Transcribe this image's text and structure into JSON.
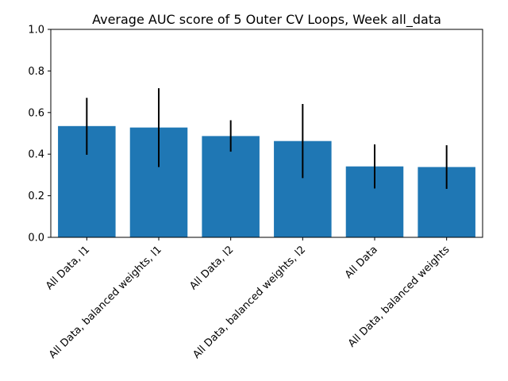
{
  "chart_data": {
    "type": "bar",
    "title": "Average AUC score of 5 Outer CV Loops, Week all_data",
    "xlabel": "",
    "ylabel": "",
    "categories": [
      "All Data, l1",
      "All Data, balanced weights, l1",
      "All Data, l2",
      "All Data, balanced weights, l2",
      "All Data",
      "All Data, balanced weights"
    ],
    "values": [
      0.535,
      0.528,
      0.487,
      0.463,
      0.341,
      0.338
    ],
    "error_low": [
      0.397,
      0.338,
      0.412,
      0.285,
      0.235,
      0.233
    ],
    "error_high": [
      0.671,
      0.717,
      0.563,
      0.641,
      0.447,
      0.443
    ],
    "ylim": [
      0,
      1.0
    ],
    "yticks": [
      "0.0",
      "0.2",
      "0.4",
      "0.6",
      "0.8",
      "1.0"
    ],
    "grid": false,
    "colors": {
      "bar": "#1f77b4",
      "error_bar": "#000000"
    }
  }
}
